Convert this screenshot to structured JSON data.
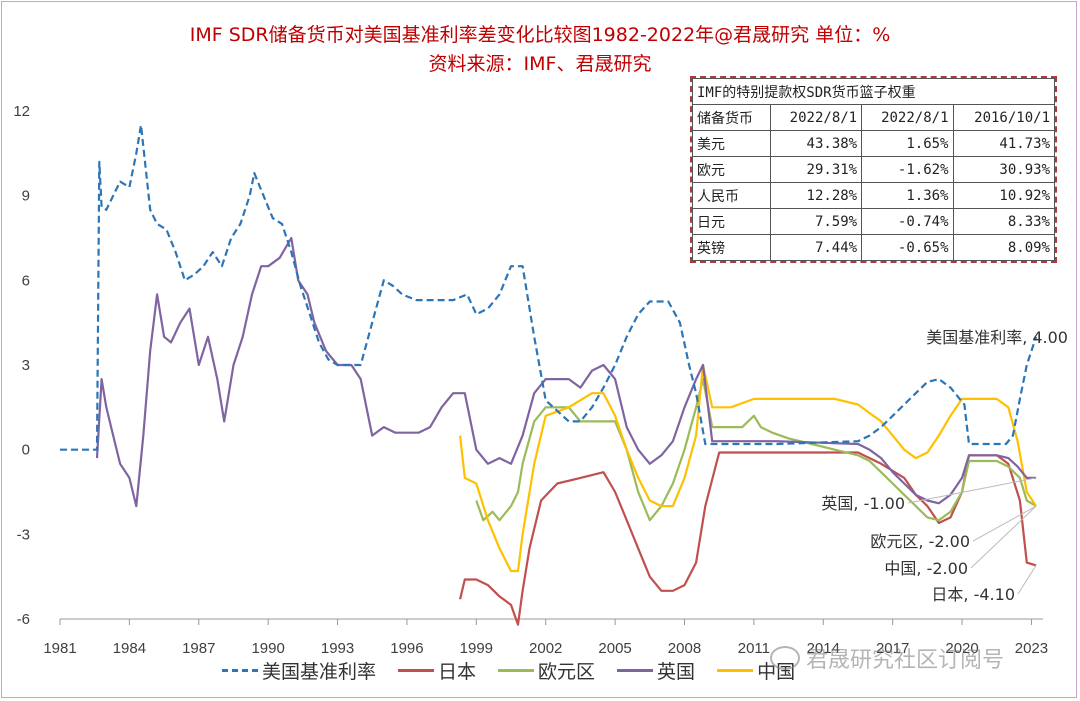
{
  "title_line1": "IMF SDR储备货币对美国基准利率差变化比较图1982-2022年@君晟研究  单位：%",
  "title_line2": "资料来源：IMF、君晟研究",
  "watermark": "君晟研究社区订阅号",
  "weight_table": {
    "caption": "IMF的特别提款权SDR货币篮子权重",
    "headers": [
      "储备货币",
      "2022/8/1",
      "2022/8/1",
      "2016/10/1"
    ],
    "rows": [
      [
        "美元",
        "43.38%",
        "1.65%",
        "41.73%"
      ],
      [
        "欧元",
        "29.31%",
        "-1.62%",
        "30.93%"
      ],
      [
        "人民币",
        "12.28%",
        "1.36%",
        "10.92%"
      ],
      [
        "日元",
        "7.59%",
        "-0.74%",
        "8.33%"
      ],
      [
        "英镑",
        "7.44%",
        "-0.65%",
        "8.09%"
      ]
    ]
  },
  "annotations": {
    "us": "美国基准利率, 4.00",
    "uk": "英国, -1.00",
    "eu": "欧元区, -2.00",
    "cn": "中国, -2.00",
    "jp": "日本, -4.10"
  },
  "chart_data": {
    "type": "line",
    "title": "IMF SDR储备货币对美国基准利率差变化比较图1982-2022年@君晟研究  单位：%",
    "xlabel": "",
    "ylabel": "%",
    "xlim": [
      1981,
      2023.5
    ],
    "ylim": [
      -6,
      12
    ],
    "x_ticks": [
      "1981",
      "1984",
      "1987",
      "1990",
      "1993",
      "1996",
      "1999",
      "2002",
      "2005",
      "2008",
      "2011",
      "2014",
      "2017",
      "2020",
      "2023"
    ],
    "y_ticks": [
      "12",
      "9",
      "6",
      "3",
      "0",
      "-3",
      "-6"
    ],
    "legend_position": "bottom",
    "series": [
      {
        "name": "美国基准利率",
        "color": "#2e75b6",
        "dash": true,
        "x": [
          1981,
          1982.6,
          1982.7,
          1982.8,
          1983.0,
          1983.3,
          1983.6,
          1984.0,
          1984.3,
          1984.5,
          1984.7,
          1984.9,
          1985.2,
          1985.6,
          1986.0,
          1986.4,
          1986.8,
          1987.2,
          1987.6,
          1988.0,
          1988.4,
          1988.8,
          1989.2,
          1989.4,
          1989.8,
          1990.2,
          1990.6,
          1991.0,
          1991.4,
          1991.8,
          1992.2,
          1992.6,
          1993.0,
          1994.0,
          1994.5,
          1995.0,
          1995.4,
          1995.8,
          1996.4,
          1997.0,
          1998.0,
          1998.6,
          1999.0,
          1999.5,
          2000.0,
          2000.5,
          2001.0,
          2001.5,
          2002.0,
          2003.0,
          2003.5,
          2004.0,
          2004.5,
          2005.0,
          2005.5,
          2006.0,
          2006.5,
          2007.3,
          2007.8,
          2008.2,
          2008.5,
          2008.9,
          2009.5,
          2012,
          2015.5,
          2016.0,
          2016.5,
          2017.0,
          2017.5,
          2018.0,
          2018.5,
          2019.0,
          2019.5,
          2019.9,
          2020.1,
          2020.3,
          2021.0,
          2021.9,
          2022.2,
          2022.5,
          2022.8,
          2023.2
        ],
        "values": [
          0,
          0,
          10.2,
          8.6,
          8.5,
          9.0,
          9.5,
          9.3,
          10.5,
          11.5,
          10.0,
          8.5,
          8.0,
          7.8,
          7.0,
          6.0,
          6.2,
          6.5,
          7.0,
          6.5,
          7.5,
          8.0,
          9.0,
          9.8,
          9.0,
          8.2,
          8.0,
          7.0,
          5.8,
          4.8,
          3.8,
          3.2,
          3.0,
          3.0,
          4.5,
          6.0,
          5.8,
          5.5,
          5.3,
          5.3,
          5.3,
          5.5,
          4.8,
          5.0,
          5.5,
          6.5,
          6.5,
          4.0,
          1.75,
          1.0,
          1.0,
          1.5,
          2.2,
          3.0,
          4.0,
          4.8,
          5.25,
          5.25,
          4.5,
          3.0,
          2.0,
          0.2,
          0.2,
          0.2,
          0.3,
          0.5,
          0.8,
          1.2,
          1.6,
          2.0,
          2.4,
          2.5,
          2.2,
          1.8,
          1.6,
          0.2,
          0.2,
          0.2,
          0.5,
          1.8,
          3.0,
          4.0
        ]
      },
      {
        "name": "日本",
        "color": "#c0504d",
        "dash": false,
        "x": [
          1998.3,
          1998.5,
          1999.0,
          1999.5,
          2000.0,
          2000.5,
          2000.8,
          2001.0,
          2001.3,
          2001.8,
          2002.5,
          2003.5,
          2004.5,
          2005.0,
          2005.5,
          2006.0,
          2006.5,
          2007.0,
          2007.5,
          2008.0,
          2008.5,
          2008.9,
          2009.5,
          2015.5,
          2016.5,
          2017.5,
          2018.0,
          2018.5,
          2019.0,
          2019.5,
          2020.0,
          2020.3,
          2021.5,
          2022.0,
          2022.5,
          2022.8,
          2023.2
        ],
        "values": [
          -5.3,
          -4.6,
          -4.6,
          -4.8,
          -5.2,
          -5.5,
          -6.2,
          -5.0,
          -3.5,
          -1.8,
          -1.2,
          -1.0,
          -0.8,
          -1.5,
          -2.5,
          -3.5,
          -4.5,
          -5.0,
          -5.0,
          -4.8,
          -4.0,
          -2.0,
          -0.1,
          -0.1,
          -0.5,
          -1.0,
          -1.6,
          -2.0,
          -2.6,
          -2.4,
          -1.5,
          -0.2,
          -0.2,
          -0.5,
          -1.8,
          -4.0,
          -4.1
        ]
      },
      {
        "name": "欧元区",
        "color": "#9bbb59",
        "dash": false,
        "x": [
          1999.0,
          1999.3,
          1999.7,
          2000.0,
          2000.5,
          2000.8,
          2001.0,
          2001.5,
          2002.0,
          2002.5,
          2003.0,
          2003.5,
          2004.0,
          2004.5,
          2005.0,
          2005.5,
          2006.0,
          2006.5,
          2007.0,
          2007.5,
          2008.0,
          2008.5,
          2008.8,
          2009.2,
          2009.6,
          2010.5,
          2011.0,
          2011.3,
          2011.8,
          2012.5,
          2013.5,
          2014.5,
          2015.5,
          2016.0,
          2016.5,
          2017.0,
          2017.5,
          2018.0,
          2018.5,
          2019.0,
          2019.5,
          2020.0,
          2020.3,
          2021.5,
          2022.0,
          2022.5,
          2022.8,
          2023.2
        ],
        "values": [
          -1.8,
          -2.5,
          -2.2,
          -2.5,
          -2.0,
          -1.5,
          -0.5,
          1.0,
          1.5,
          1.5,
          1.5,
          1.0,
          1.0,
          1.0,
          1.0,
          0.0,
          -1.5,
          -2.5,
          -2.0,
          -1.2,
          0.0,
          1.5,
          2.5,
          0.8,
          0.8,
          0.8,
          1.2,
          0.8,
          0.6,
          0.4,
          0.2,
          0.0,
          -0.2,
          -0.4,
          -0.8,
          -1.2,
          -1.6,
          -2.0,
          -2.4,
          -2.5,
          -2.2,
          -1.5,
          -0.4,
          -0.4,
          -0.6,
          -1.0,
          -1.8,
          -2.0
        ]
      },
      {
        "name": "英国",
        "color": "#8064a2",
        "dash": false,
        "x": [
          1982.6,
          1982.8,
          1983.0,
          1983.3,
          1983.6,
          1984.0,
          1984.3,
          1984.6,
          1984.9,
          1985.2,
          1985.5,
          1985.8,
          1986.2,
          1986.6,
          1987.0,
          1987.4,
          1987.8,
          1988.1,
          1988.5,
          1988.9,
          1989.3,
          1989.7,
          1990.0,
          1990.5,
          1991.0,
          1991.3,
          1991.7,
          1992.0,
          1992.5,
          1993.0,
          1993.6,
          1994.0,
          1994.5,
          1995.0,
          1995.5,
          1996.0,
          1996.5,
          1997.0,
          1997.5,
          1998.0,
          1998.5,
          1999.0,
          1999.5,
          2000.0,
          2000.5,
          2001.0,
          2001.5,
          2002.0,
          2003.0,
          2003.5,
          2004.0,
          2004.5,
          2005.0,
          2005.5,
          2006.0,
          2006.5,
          2007.0,
          2007.5,
          2008.0,
          2008.5,
          2008.8,
          2009.2,
          2012,
          2015.5,
          2016.0,
          2016.5,
          2017.0,
          2017.5,
          2018.0,
          2018.5,
          2019.0,
          2019.5,
          2020.0,
          2020.3,
          2021.5,
          2022.0,
          2022.4,
          2022.8,
          2023.2
        ],
        "values": [
          -0.3,
          2.5,
          1.5,
          0.5,
          -0.5,
          -1.0,
          -2.0,
          0.5,
          3.5,
          5.5,
          4.0,
          3.8,
          4.5,
          5.0,
          3.0,
          4.0,
          2.5,
          1.0,
          3.0,
          4.0,
          5.5,
          6.5,
          6.5,
          6.8,
          7.5,
          6.0,
          5.5,
          4.5,
          3.5,
          3.0,
          3.0,
          2.5,
          0.5,
          0.8,
          0.6,
          0.6,
          0.6,
          0.8,
          1.5,
          2.0,
          2.0,
          0.0,
          -0.5,
          -0.3,
          -0.5,
          0.5,
          2.0,
          2.5,
          2.5,
          2.2,
          2.8,
          3.0,
          2.5,
          0.8,
          0.0,
          -0.5,
          -0.2,
          0.3,
          1.5,
          2.5,
          3.0,
          0.3,
          0.3,
          0.2,
          0.0,
          -0.3,
          -0.8,
          -1.2,
          -1.6,
          -1.8,
          -1.9,
          -1.6,
          -1.0,
          -0.2,
          -0.2,
          -0.3,
          -0.6,
          -1.0,
          -1.0
        ]
      },
      {
        "name": "中国",
        "color": "#ffc000",
        "dash": false,
        "x": [
          1998.3,
          1998.5,
          1999.0,
          1999.5,
          2000.0,
          2000.5,
          2000.8,
          2001.0,
          2001.5,
          2002.0,
          2003.0,
          2004.0,
          2004.5,
          2005.0,
          2005.5,
          2006.0,
          2006.5,
          2007.0,
          2007.5,
          2008.0,
          2008.5,
          2008.8,
          2009.2,
          2010.0,
          2011.0,
          2012,
          2013,
          2014.5,
          2015.5,
          2016.0,
          2016.5,
          2017.0,
          2017.5,
          2018.0,
          2018.5,
          2019.0,
          2019.5,
          2020.0,
          2020.3,
          2021.5,
          2022.0,
          2022.4,
          2022.8,
          2023.2
        ],
        "values": [
          0.5,
          -1.0,
          -1.2,
          -2.5,
          -3.5,
          -4.3,
          -4.3,
          -3.0,
          -0.5,
          1.2,
          1.5,
          2.0,
          2.0,
          1.2,
          0.0,
          -1.0,
          -1.8,
          -2.0,
          -2.0,
          -1.0,
          0.5,
          3.0,
          1.5,
          1.5,
          1.8,
          1.8,
          1.8,
          1.8,
          1.6,
          1.3,
          1.0,
          0.5,
          0.0,
          -0.3,
          -0.1,
          0.5,
          1.2,
          1.8,
          1.8,
          1.8,
          1.5,
          0.3,
          -1.5,
          -2.0
        ]
      }
    ]
  },
  "legend_items": [
    {
      "label": "美国基准利率",
      "color": "#2e75b6",
      "dash": true
    },
    {
      "label": "日本",
      "color": "#c0504d",
      "dash": false
    },
    {
      "label": "欧元区",
      "color": "#9bbb59",
      "dash": false
    },
    {
      "label": "英国",
      "color": "#8064a2",
      "dash": false
    },
    {
      "label": "中国",
      "color": "#ffc000",
      "dash": false
    }
  ]
}
